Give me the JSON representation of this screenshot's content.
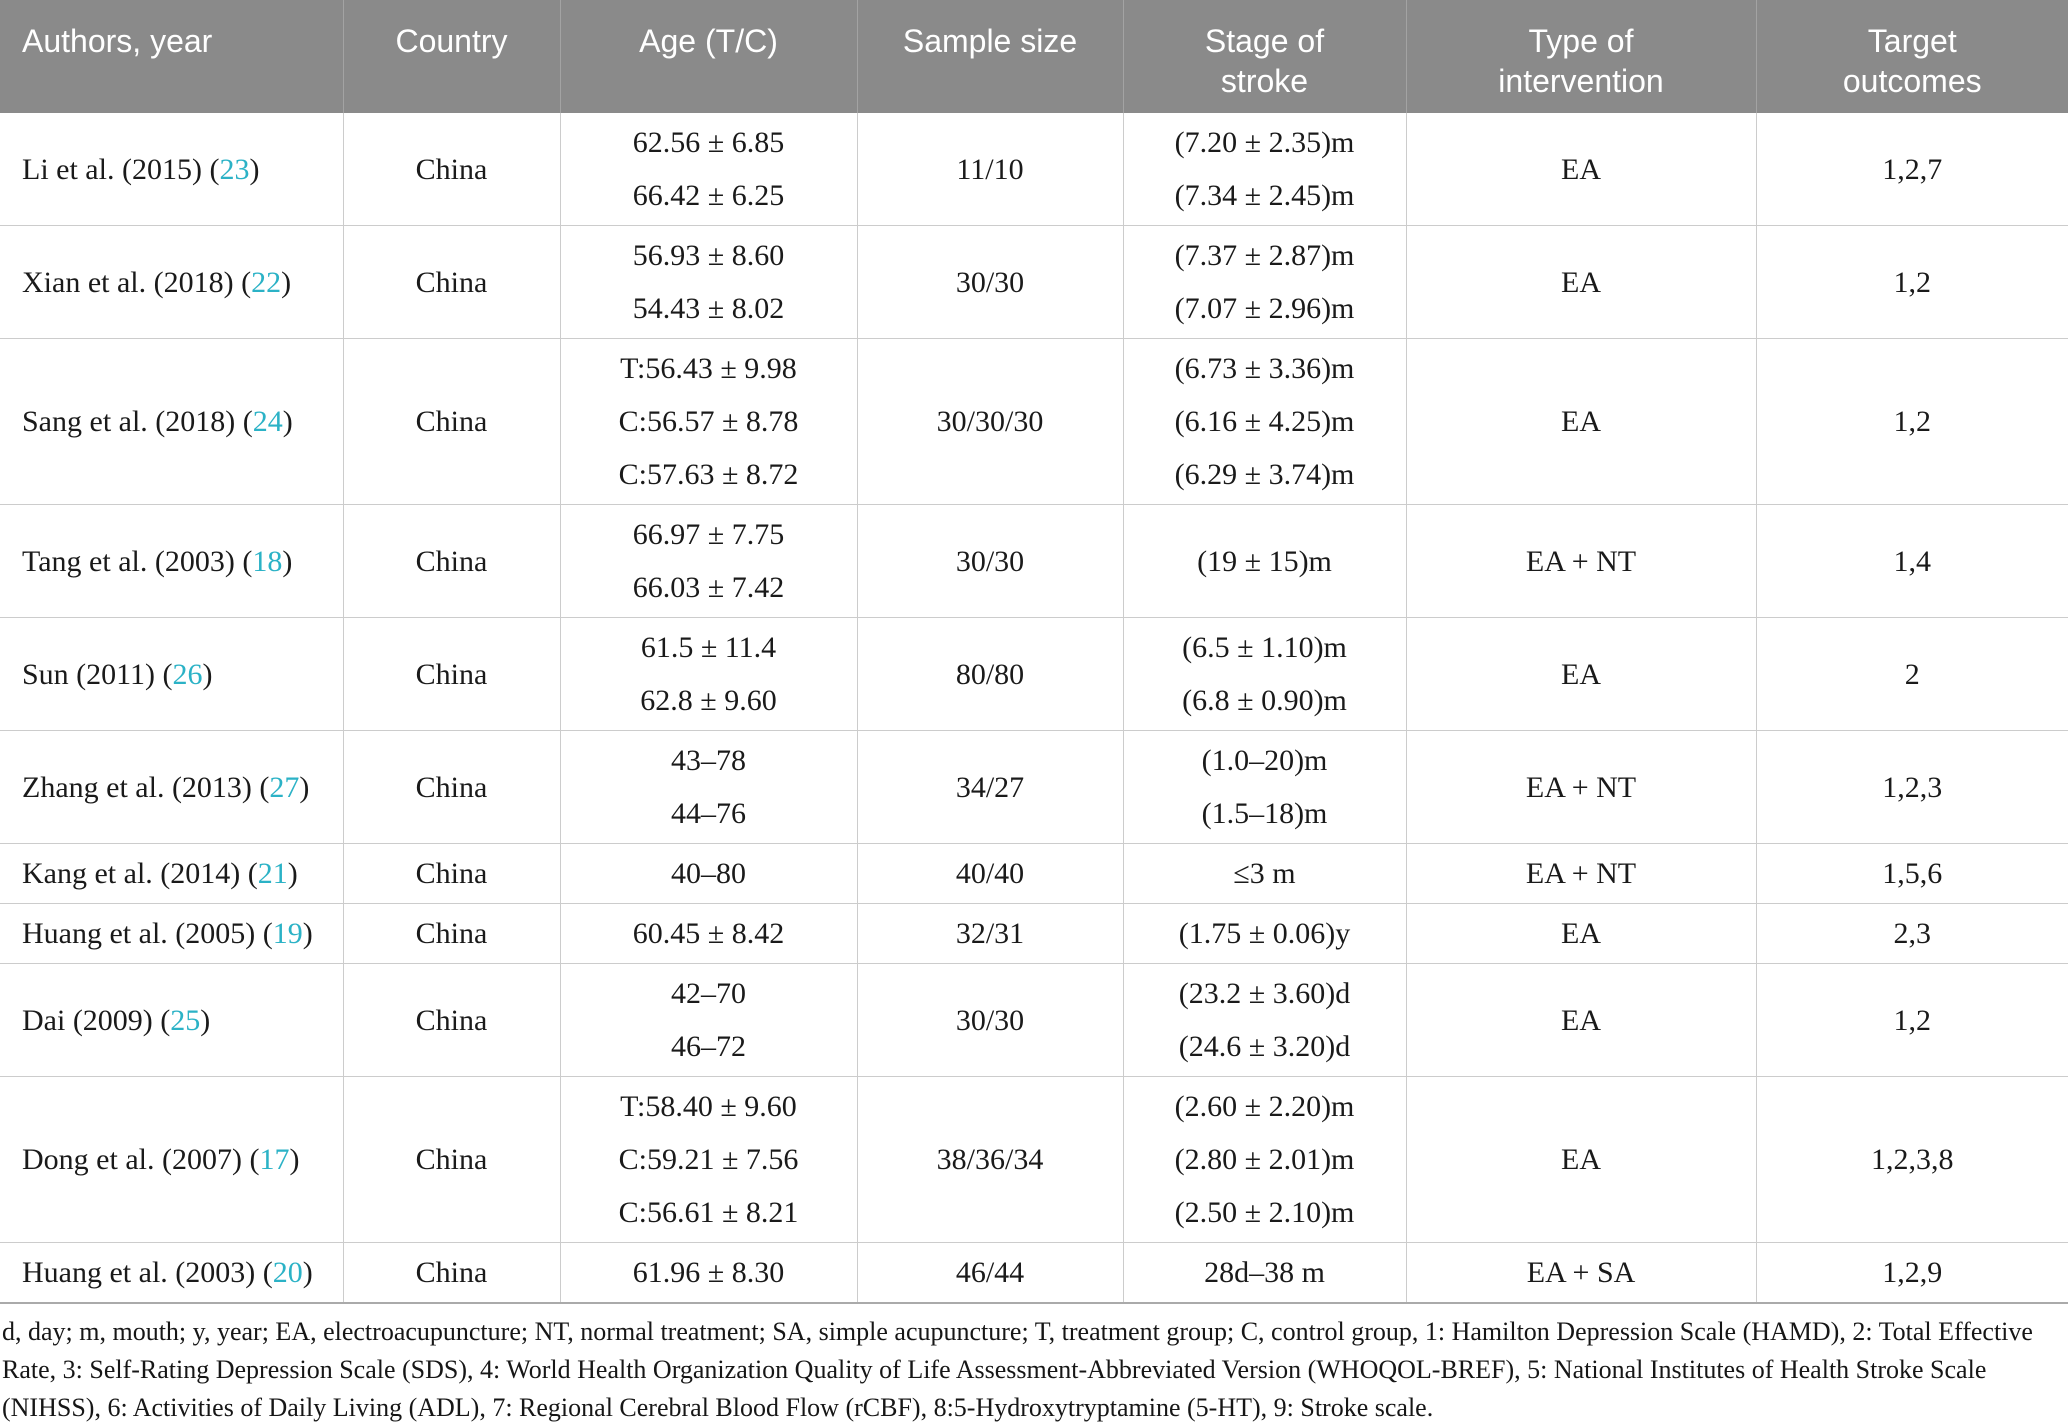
{
  "colors": {
    "header_bg": "#8a8a8a",
    "header_text": "#ffffff",
    "citation": "#2bb2c6",
    "border": "#cccccc",
    "body_text": "#1a1a1a"
  },
  "table": {
    "columns": [
      {
        "label": "Authors, year"
      },
      {
        "label": "Country"
      },
      {
        "label": "Age (T/C)"
      },
      {
        "label": "Sample size"
      },
      {
        "label": "Stage of\nstroke"
      },
      {
        "label": "Type of\nintervention"
      },
      {
        "label": "Target\noutcomes"
      }
    ],
    "rows": [
      {
        "authors": "Li et al. (2015)",
        "ref": "23",
        "country": "China",
        "age": [
          "62.56 ± 6.85",
          "66.42 ± 6.25"
        ],
        "sample_size": "11/10",
        "stage": [
          "(7.20 ± 2.35)m",
          "(7.34 ± 2.45)m"
        ],
        "intervention": "EA",
        "outcomes": "1,2,7"
      },
      {
        "authors": "Xian et al. (2018)",
        "ref": "22",
        "country": "China",
        "age": [
          "56.93 ± 8.60",
          "54.43 ± 8.02"
        ],
        "sample_size": "30/30",
        "stage": [
          "(7.37 ± 2.87)m",
          "(7.07 ± 2.96)m"
        ],
        "intervention": "EA",
        "outcomes": "1,2"
      },
      {
        "authors": "Sang et al. (2018)",
        "ref": "24",
        "country": "China",
        "age": [
          "T:56.43 ± 9.98",
          "C:56.57 ± 8.78",
          "C:57.63 ± 8.72"
        ],
        "sample_size": "30/30/30",
        "stage": [
          "(6.73 ± 3.36)m",
          "(6.16 ± 4.25)m",
          "(6.29 ± 3.74)m"
        ],
        "intervention": "EA",
        "outcomes": "1,2"
      },
      {
        "authors": "Tang et al. (2003)",
        "ref": "18",
        "country": "China",
        "age": [
          "66.97 ± 7.75",
          "66.03 ± 7.42"
        ],
        "sample_size": "30/30",
        "stage": [
          "(19 ± 15)m"
        ],
        "intervention": "EA + NT",
        "outcomes": "1,4"
      },
      {
        "authors": "Sun (2011)",
        "ref": "26",
        "country": "China",
        "age": [
          "61.5 ± 11.4",
          "62.8 ± 9.60"
        ],
        "sample_size": "80/80",
        "stage": [
          "(6.5 ± 1.10)m",
          "(6.8 ± 0.90)m"
        ],
        "intervention": "EA",
        "outcomes": "2"
      },
      {
        "authors": "Zhang et al. (2013)",
        "ref": "27",
        "country": "China",
        "age": [
          "43–78",
          "44–76"
        ],
        "sample_size": "34/27",
        "stage": [
          "(1.0–20)m",
          "(1.5–18)m"
        ],
        "intervention": "EA + NT",
        "outcomes": "1,2,3"
      },
      {
        "authors": "Kang et al. (2014)",
        "ref": "21",
        "country": "China",
        "age": [
          "40–80"
        ],
        "sample_size": "40/40",
        "stage": [
          "≤3 m"
        ],
        "intervention": "EA + NT",
        "outcomes": "1,5,6"
      },
      {
        "authors": "Huang et al. (2005)",
        "ref": "19",
        "country": "China",
        "age": [
          "60.45 ± 8.42"
        ],
        "sample_size": "32/31",
        "stage": [
          "(1.75 ± 0.06)y"
        ],
        "intervention": "EA",
        "outcomes": "2,3"
      },
      {
        "authors": "Dai (2009)",
        "ref": "25",
        "country": "China",
        "age": [
          "42–70",
          "46–72"
        ],
        "sample_size": "30/30",
        "stage": [
          "(23.2 ± 3.60)d",
          "(24.6 ± 3.20)d"
        ],
        "intervention": "EA",
        "outcomes": "1,2"
      },
      {
        "authors": "Dong et al. (2007)",
        "ref": "17",
        "country": "China",
        "age": [
          "T:58.40 ± 9.60",
          "C:59.21 ± 7.56",
          "C:56.61 ± 8.21"
        ],
        "sample_size": "38/36/34",
        "stage": [
          "(2.60 ± 2.20)m",
          "(2.80 ± 2.01)m",
          "(2.50 ± 2.10)m"
        ],
        "intervention": "EA",
        "outcomes": "1,2,3,8"
      },
      {
        "authors": "Huang et al. (2003)",
        "ref": "20",
        "country": "China",
        "age": [
          "61.96 ± 8.30"
        ],
        "sample_size": "46/44",
        "stage": [
          "28d–38 m"
        ],
        "intervention": "EA + SA",
        "outcomes": "1,2,9"
      }
    ]
  },
  "footnote": "d, day; m, mouth; y, year; EA, electroacupuncture; NT, normal treatment; SA, simple acupuncture; T, treatment group; C, control group, 1: Hamilton Depression Scale (HAMD), 2: Total Effective Rate, 3: Self-Rating Depression Scale (SDS), 4: World Health Organization Quality of Life Assessment-Abbreviated Version (WHOQOL-BREF), 5: National Institutes of Health Stroke Scale (NIHSS), 6: Activities of Daily Living (ADL), 7: Regional Cerebral Blood Flow (rCBF), 8:5-Hydroxytryptamine (5-HT), 9: Stroke scale."
}
